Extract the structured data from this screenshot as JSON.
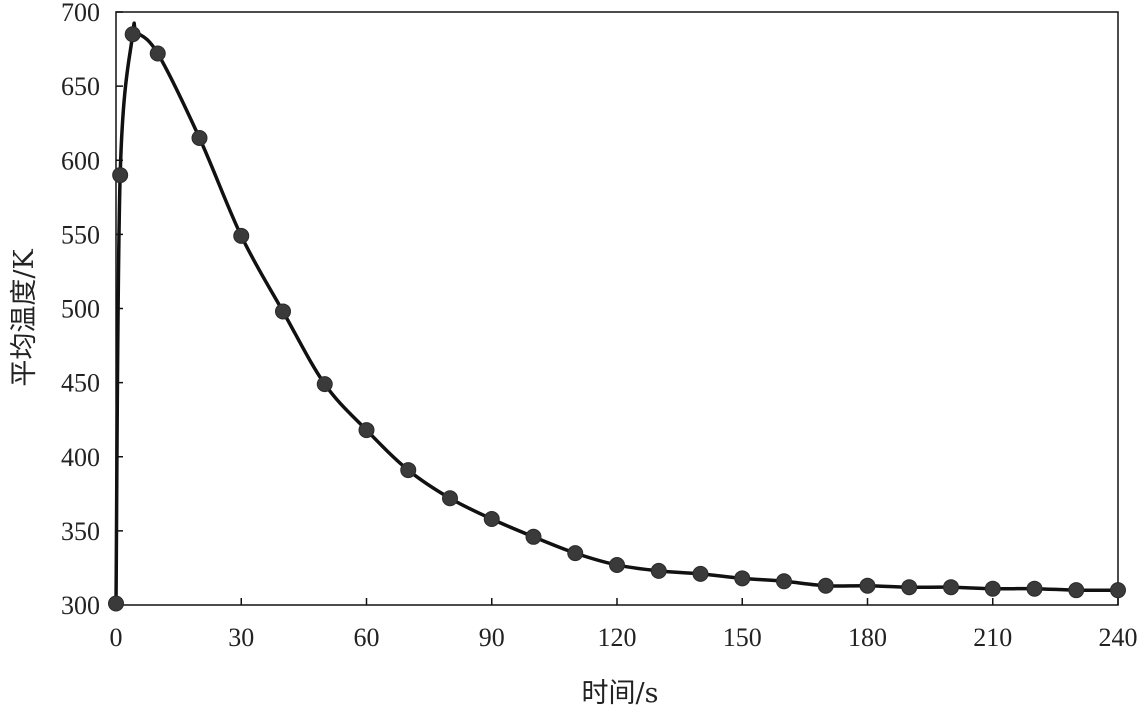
{
  "chart_data": {
    "type": "line",
    "title": "",
    "xlabel": "时间/s",
    "ylabel": "平均温度/K",
    "xlim": [
      0,
      240
    ],
    "ylim": [
      300,
      700
    ],
    "xticks": [
      0,
      30,
      60,
      90,
      120,
      150,
      180,
      210,
      240
    ],
    "yticks": [
      300,
      350,
      400,
      450,
      500,
      550,
      600,
      650,
      700
    ],
    "grid": false,
    "legend": "none",
    "series": [
      {
        "x": [
          0,
          1,
          4,
          10,
          20,
          30,
          40,
          50,
          60,
          70,
          80,
          90,
          100,
          110,
          120,
          130,
          140,
          150,
          160,
          170,
          180,
          190,
          200,
          210,
          220,
          230,
          240
        ],
        "y": [
          301,
          590,
          685,
          672,
          615,
          549,
          498,
          449,
          418,
          391,
          372,
          358,
          346,
          335,
          327,
          323,
          321,
          318,
          316,
          313,
          313,
          312,
          312,
          311,
          311,
          310,
          310
        ]
      }
    ],
    "curve_peak": {
      "x": 5,
      "y": 686
    },
    "colors": {
      "line": "#111111",
      "marker": "#3a3a3a"
    }
  }
}
